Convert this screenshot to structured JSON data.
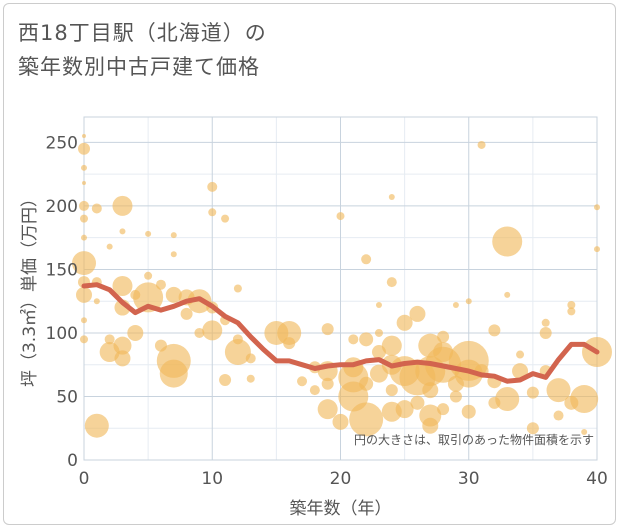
{
  "title_line1": "西18丁目駅（北海道）の",
  "title_line2": "築年数別中古戸建て価格",
  "chart_data": {
    "type": "scatter",
    "title": "西18丁目駅（北海道）の築年数別中古戸建て価格",
    "xlabel": "築年数（年）",
    "ylabel": "坪（3.3㎡）単価（万円）",
    "xlim": [
      0,
      40
    ],
    "ylim": [
      0,
      270
    ],
    "xticks": [
      0,
      10,
      20,
      30,
      40
    ],
    "yticks": [
      0,
      50,
      100,
      150,
      200,
      250
    ],
    "grid": true,
    "annotation": "円の大きさは、取引のあった物件面積を示す",
    "colors": {
      "bubble": "#f0b85a",
      "line": "#d2644e",
      "grid": "#c8d3de",
      "axis": "#555555"
    },
    "bubbles": [
      [
        0,
        255,
        2
      ],
      [
        0,
        245,
        6
      ],
      [
        0,
        230,
        3
      ],
      [
        0,
        218,
        2
      ],
      [
        0,
        200,
        5
      ],
      [
        0,
        190,
        4
      ],
      [
        0,
        175,
        3
      ],
      [
        0,
        155,
        12
      ],
      [
        0,
        140,
        6
      ],
      [
        0,
        130,
        8
      ],
      [
        0,
        110,
        3
      ],
      [
        0,
        95,
        4
      ],
      [
        1,
        198,
        5
      ],
      [
        1,
        140,
        5
      ],
      [
        1,
        125,
        3
      ],
      [
        1,
        27,
        12
      ],
      [
        2,
        168,
        3
      ],
      [
        2,
        85,
        10
      ],
      [
        2,
        95,
        5
      ],
      [
        3,
        200,
        10
      ],
      [
        3,
        180,
        3
      ],
      [
        3,
        137,
        10
      ],
      [
        3,
        120,
        8
      ],
      [
        3,
        90,
        9
      ],
      [
        3,
        80,
        8
      ],
      [
        4,
        130,
        5
      ],
      [
        4,
        100,
        8
      ],
      [
        5,
        178,
        3
      ],
      [
        5,
        128,
        15
      ],
      [
        5,
        145,
        4
      ],
      [
        6,
        138,
        5
      ],
      [
        6,
        90,
        6
      ],
      [
        7,
        177,
        3
      ],
      [
        7,
        162,
        3
      ],
      [
        7,
        130,
        8
      ],
      [
        7,
        78,
        17
      ],
      [
        7,
        68,
        14
      ],
      [
        8,
        115,
        6
      ],
      [
        8,
        128,
        8
      ],
      [
        9,
        125,
        12
      ],
      [
        9,
        100,
        5
      ],
      [
        10,
        215,
        5
      ],
      [
        10,
        195,
        4
      ],
      [
        10,
        120,
        6
      ],
      [
        10,
        102,
        10
      ],
      [
        11,
        190,
        4
      ],
      [
        11,
        110,
        5
      ],
      [
        11,
        63,
        6
      ],
      [
        12,
        95,
        5
      ],
      [
        12,
        85,
        13
      ],
      [
        12,
        135,
        4
      ],
      [
        13,
        80,
        5
      ],
      [
        13,
        64,
        4
      ],
      [
        15,
        100,
        12
      ],
      [
        16,
        100,
        12
      ],
      [
        16,
        92,
        6
      ],
      [
        17,
        62,
        5
      ],
      [
        18,
        73,
        6
      ],
      [
        18,
        55,
        5
      ],
      [
        19,
        103,
        6
      ],
      [
        19,
        70,
        10
      ],
      [
        19,
        60,
        6
      ],
      [
        19,
        40,
        10
      ],
      [
        20,
        192,
        4
      ],
      [
        20,
        30,
        8
      ],
      [
        21,
        95,
        5
      ],
      [
        21,
        73,
        10
      ],
      [
        21,
        65,
        15
      ],
      [
        21,
        50,
        15
      ],
      [
        22,
        158,
        5
      ],
      [
        22,
        95,
        7
      ],
      [
        22,
        60,
        7
      ],
      [
        22,
        32,
        17
      ],
      [
        23,
        100,
        4
      ],
      [
        23,
        85,
        7
      ],
      [
        23,
        68,
        9
      ],
      [
        23,
        122,
        3
      ],
      [
        24,
        207,
        3
      ],
      [
        24,
        140,
        5
      ],
      [
        24,
        90,
        10
      ],
      [
        24,
        75,
        10
      ],
      [
        24,
        55,
        6
      ],
      [
        24,
        38,
        10
      ],
      [
        25,
        108,
        8
      ],
      [
        25,
        70,
        15
      ],
      [
        25,
        40,
        9
      ],
      [
        26,
        115,
        8
      ],
      [
        26,
        65,
        18
      ],
      [
        26,
        45,
        7
      ],
      [
        27,
        90,
        12
      ],
      [
        27,
        70,
        15
      ],
      [
        27,
        55,
        8
      ],
      [
        27,
        35,
        11
      ],
      [
        27,
        27,
        8
      ],
      [
        28,
        97,
        6
      ],
      [
        28,
        85,
        10
      ],
      [
        28,
        75,
        18
      ],
      [
        28,
        40,
        6
      ],
      [
        29,
        122,
        3
      ],
      [
        29,
        60,
        8
      ],
      [
        29,
        50,
        6
      ],
      [
        30,
        125,
        3
      ],
      [
        30,
        78,
        20
      ],
      [
        30,
        68,
        14
      ],
      [
        30,
        38,
        7
      ],
      [
        31,
        248,
        4
      ],
      [
        31,
        70,
        7
      ],
      [
        32,
        102,
        6
      ],
      [
        32,
        62,
        7
      ],
      [
        32,
        45,
        6
      ],
      [
        33,
        172,
        15
      ],
      [
        33,
        130,
        3
      ],
      [
        33,
        48,
        12
      ],
      [
        34,
        83,
        4
      ],
      [
        34,
        70,
        8
      ],
      [
        35,
        53,
        6
      ],
      [
        35,
        25,
        6
      ],
      [
        36,
        108,
        4
      ],
      [
        36,
        100,
        6
      ],
      [
        36,
        70,
        6
      ],
      [
        37,
        55,
        12
      ],
      [
        37,
        35,
        5
      ],
      [
        38,
        122,
        4
      ],
      [
        38,
        117,
        4
      ],
      [
        38,
        45,
        7
      ],
      [
        39,
        48,
        14
      ],
      [
        39,
        22,
        3
      ],
      [
        40,
        199,
        3
      ],
      [
        40,
        166,
        3
      ],
      [
        40,
        85,
        15
      ]
    ],
    "line": {
      "x": [
        0,
        1,
        2,
        3,
        4,
        5,
        6,
        7,
        8,
        9,
        10,
        11,
        12,
        13,
        14,
        15,
        16,
        17,
        18,
        19,
        20,
        21,
        22,
        23,
        24,
        25,
        26,
        27,
        28,
        29,
        30,
        31,
        32,
        33,
        34,
        35,
        36,
        37,
        38,
        39,
        40
      ],
      "y": [
        137,
        138,
        134,
        124,
        116,
        121,
        118,
        121,
        125,
        127,
        121,
        113,
        108,
        97,
        87,
        78,
        78,
        75,
        72,
        74,
        75,
        75,
        78,
        79,
        74,
        76,
        77,
        76,
        74,
        72,
        70,
        67,
        66,
        62,
        63,
        68,
        65,
        79,
        91,
        91,
        85
      ]
    }
  }
}
